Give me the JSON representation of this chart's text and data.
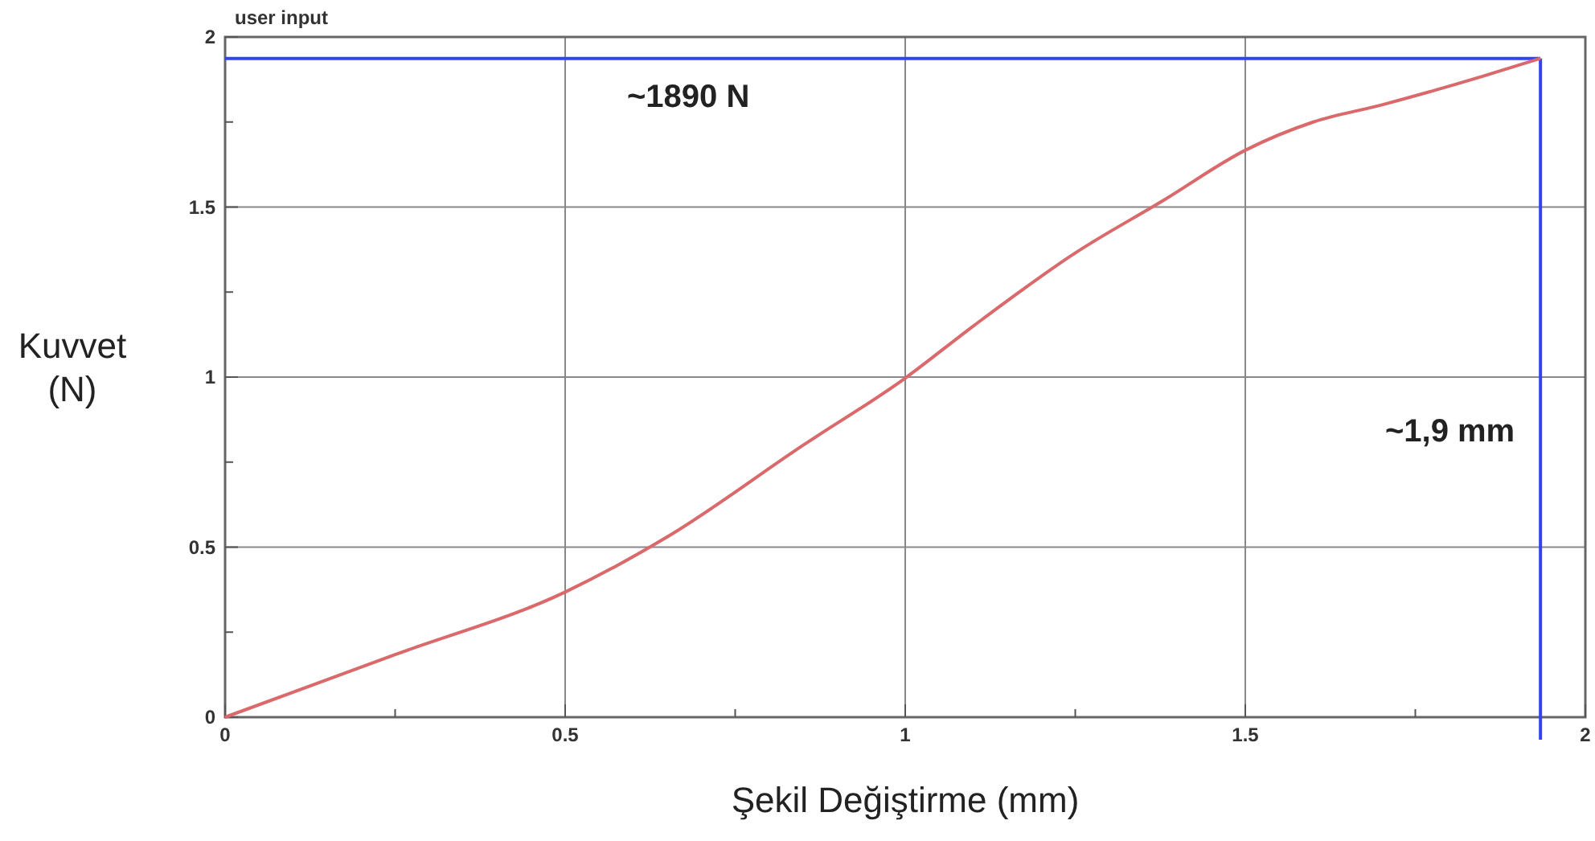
{
  "chart_data": {
    "type": "line",
    "title": "user input",
    "xlabel": "Şekil Değiştirme (mm)",
    "ylabel": "Kuvvet\n(N)",
    "xlim": [
      0,
      2
    ],
    "ylim": [
      0,
      2
    ],
    "xticks": [
      0,
      {
        "value": 0.25,
        "label": null
      },
      0.5,
      {
        "value": 0.75,
        "label": null
      },
      1,
      {
        "value": 1.25,
        "label": null
      },
      1.5,
      {
        "value": 1.75,
        "label": null
      },
      2
    ],
    "yticks": [
      0,
      {
        "value": 0.25,
        "label": null
      },
      0.5,
      {
        "value": 0.75,
        "label": null
      },
      1,
      {
        "value": 1.25,
        "label": null
      },
      1.5,
      {
        "value": 1.75,
        "label": null
      },
      2
    ],
    "grid": true,
    "series": [
      {
        "color": "#d9696b",
        "x": [
          0,
          0.25,
          0.5,
          0.65,
          0.85,
          1,
          1.1,
          1.25,
          1.38,
          1.5,
          1.6,
          1.7,
          1.85,
          1.934
        ],
        "values": [
          0,
          0.184,
          0.368,
          0.53,
          0.8,
          0.997,
          1.15,
          1.365,
          1.52,
          1.667,
          1.75,
          1.8,
          1.885,
          1.937
        ]
      }
    ],
    "ref_lines": [
      {
        "axis": "y",
        "value": 1.937,
        "label": "~1890 N",
        "color": "#3344ee"
      },
      {
        "axis": "x",
        "value": 1.934,
        "label": "~1,9 mm",
        "color": "#3344ee"
      }
    ]
  }
}
